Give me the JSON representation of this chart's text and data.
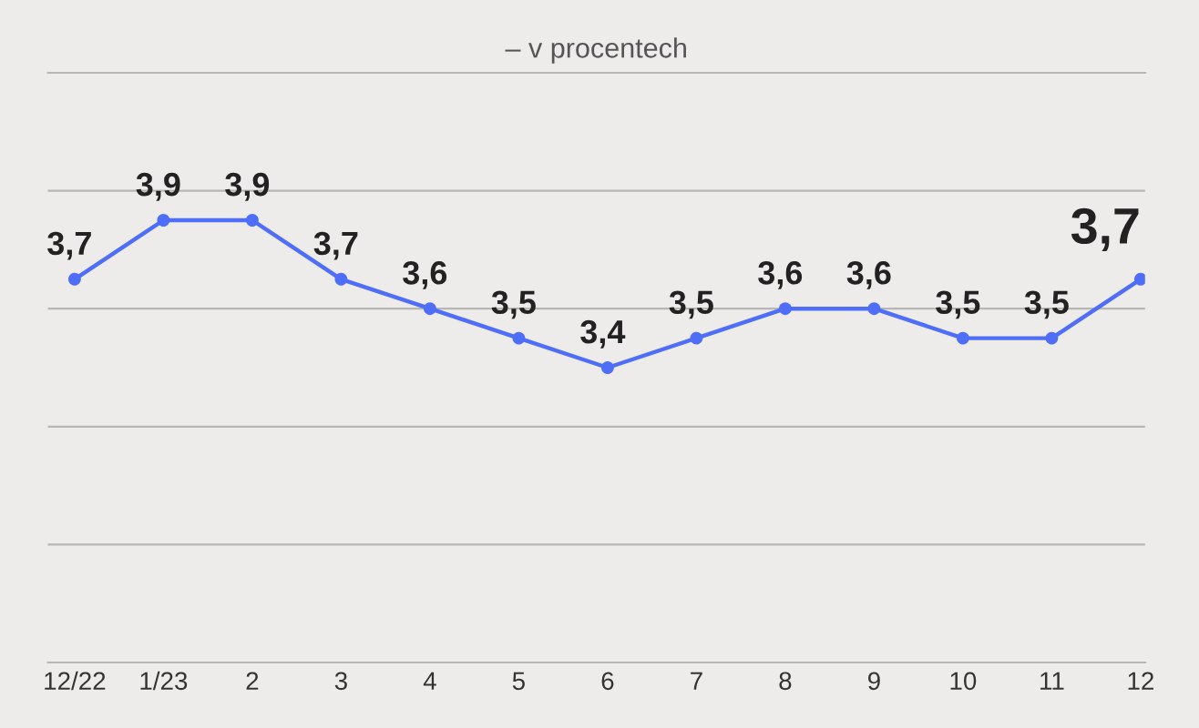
{
  "chart_data": {
    "type": "line",
    "title": "– v procentech",
    "categories": [
      "12/22",
      "1/23",
      "2",
      "3",
      "4",
      "5",
      "6",
      "7",
      "8",
      "9",
      "10",
      "11",
      "12"
    ],
    "series": [
      {
        "color": "#4f6ef7",
        "values": [
          3.7,
          3.9,
          3.9,
          3.7,
          3.6,
          3.5,
          3.4,
          3.5,
          3.6,
          3.6,
          3.5,
          3.5,
          3.7
        ],
        "value_labels": [
          "3,7",
          "3,9",
          "3,9",
          "3,7",
          "3,6",
          "3,5",
          "3,4",
          "3,5",
          "3,6",
          "3,6",
          "3,5",
          "3,5",
          "3,7"
        ]
      }
    ],
    "ylim": [
      2.4,
      4.4
    ],
    "yticks": [
      {
        "value": 2.4,
        "label": null
      },
      {
        "value": 2.8,
        "label": null
      },
      {
        "value": 3.2,
        "label": null
      },
      {
        "value": 3.6,
        "label": null
      },
      {
        "value": 4.0,
        "label": null
      },
      {
        "value": 4.4,
        "label": null
      }
    ],
    "tick_labels": "x",
    "grid": "y",
    "marker": "circle",
    "line_style": "solid"
  }
}
